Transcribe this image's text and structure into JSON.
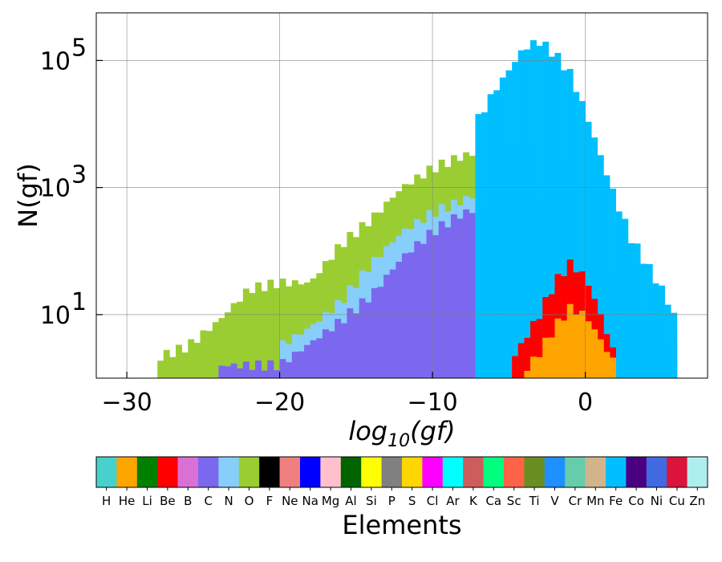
{
  "chart_data": {
    "type": "histogram-stacked",
    "xlabel_base": "log",
    "xlabel_sub": "10",
    "xlabel_arg": "(gf)",
    "ylabel": "N(gf)",
    "yscale": "log",
    "xlim": [
      -32,
      8
    ],
    "ylim_log10": [
      0,
      5.75
    ],
    "xticks": [
      -30,
      -20,
      -10,
      0
    ],
    "xtick_labels": [
      "−30",
      "−20",
      "−10",
      "0"
    ],
    "yticks_log10": [
      1,
      3,
      5
    ],
    "ytick_labels": [
      "10",
      "10",
      "10"
    ],
    "ytick_exponents": [
      "1",
      "3",
      "5"
    ],
    "grid": true,
    "colorbar": {
      "title": "Elements",
      "elements": [
        "H",
        "He",
        "Li",
        "Be",
        "B",
        "C",
        "N",
        "O",
        "F",
        "Ne",
        "Na",
        "Mg",
        "Al",
        "Si",
        "P",
        "S",
        "Cl",
        "Ar",
        "K",
        "Ca",
        "Sc",
        "Ti",
        "V",
        "Cr",
        "Mn",
        "Fe",
        "Co",
        "Ni",
        "Cu",
        "Zn"
      ],
      "colors": [
        "#48d1cc",
        "#ffa500",
        "#008000",
        "#ff0000",
        "#da70d6",
        "#7b68ee",
        "#87cefa",
        "#9acd32",
        "#000000",
        "#f08080",
        "#0000ff",
        "#ffc0cb",
        "#006400",
        "#ffff00",
        "#808080",
        "#ffd700",
        "#ff00ff",
        "#00ffff",
        "#cd5c5c",
        "#00ff7f",
        "#ff6347",
        "#6b8e23",
        "#1e90ff",
        "#66cdaa",
        "#d2b48c",
        "#00bfff",
        "#4b0082",
        "#4169e1",
        "#dc143c",
        "#afeeee"
      ]
    },
    "series_envelopes_log10": [
      {
        "name": "O",
        "points": [
          [
            -28.2,
            0.3
          ],
          [
            -26,
            0.5
          ],
          [
            -24,
            0.9
          ],
          [
            -22,
            1.4
          ],
          [
            -20,
            1.5
          ],
          [
            -18,
            1.5
          ],
          [
            -16,
            2.1
          ],
          [
            -14,
            2.5
          ],
          [
            -12,
            3.0
          ],
          [
            -10,
            3.3
          ],
          [
            -8,
            3.5
          ],
          [
            -6,
            3.6
          ],
          [
            -4,
            3.7
          ],
          [
            -2,
            3.6
          ],
          [
            0,
            3.2
          ],
          [
            2,
            2.4
          ],
          [
            4,
            1.5
          ],
          [
            5.8,
            0.8
          ]
        ]
      },
      {
        "name": "N",
        "points": [
          [
            -20,
            0.5
          ],
          [
            -18,
            0.8
          ],
          [
            -16,
            1.2
          ],
          [
            -14,
            1.8
          ],
          [
            -12,
            2.3
          ],
          [
            -10,
            2.6
          ],
          [
            -8,
            2.8
          ],
          [
            -6,
            3.0
          ],
          [
            -4,
            3.1
          ],
          [
            -2,
            3.0
          ],
          [
            0,
            2.5
          ],
          [
            2,
            1.8
          ],
          [
            4,
            1.0
          ],
          [
            5.8,
            0.5
          ]
        ]
      },
      {
        "name": "C",
        "points": [
          [
            -24,
            0.2
          ],
          [
            -20,
            0.2
          ],
          [
            -16,
            0.9
          ],
          [
            -14,
            1.3
          ],
          [
            -12,
            1.9
          ],
          [
            -10,
            2.3
          ],
          [
            -8,
            2.6
          ],
          [
            -6,
            2.7
          ],
          [
            -4,
            2.8
          ],
          [
            -2,
            2.7
          ],
          [
            0,
            2.2
          ],
          [
            2,
            1.5
          ],
          [
            4,
            0.8
          ],
          [
            5.8,
            0.3
          ]
        ]
      },
      {
        "name": "Fe",
        "points": [
          [
            -7.2,
            4.0
          ],
          [
            -6,
            4.5
          ],
          [
            -4,
            5.2
          ],
          [
            -3,
            5.3
          ],
          [
            -2,
            5.1
          ],
          [
            -1,
            4.8
          ],
          [
            0,
            4.2
          ],
          [
            1,
            3.5
          ],
          [
            2,
            2.8
          ],
          [
            3,
            2.2
          ],
          [
            4,
            1.8
          ],
          [
            5,
            1.4
          ],
          [
            5.8,
            1.0
          ]
        ]
      },
      {
        "name": "Be",
        "points": [
          [
            -5,
            0.2
          ],
          [
            -4,
            0.6
          ],
          [
            -3,
            1.0
          ],
          [
            -2,
            1.5
          ],
          [
            -1,
            1.8
          ],
          [
            0,
            1.6
          ],
          [
            1,
            1.0
          ],
          [
            2,
            0.3
          ]
        ]
      },
      {
        "name": "He",
        "points": [
          [
            -4,
            0.1
          ],
          [
            -3,
            0.4
          ],
          [
            -2,
            0.8
          ],
          [
            -1,
            1.1
          ],
          [
            0,
            1.0
          ],
          [
            1,
            0.6
          ],
          [
            2,
            0.2
          ]
        ]
      }
    ]
  }
}
